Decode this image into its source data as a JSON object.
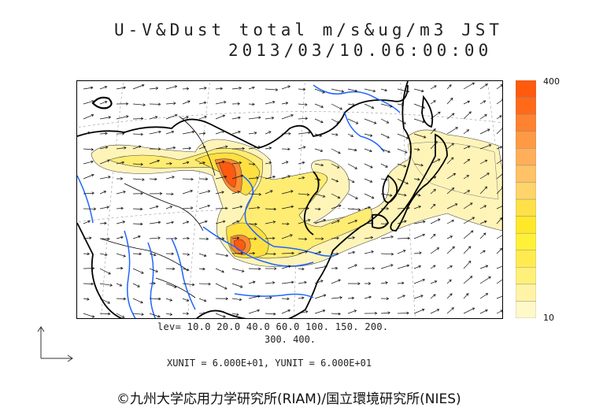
{
  "title": "U-V&Dust total m/s&ug/m3 JST",
  "datetime": "2013/03/10.06:00:00",
  "colorbar": {
    "max_label": "400",
    "min_label": "10",
    "colors": [
      "#fff8c8",
      "#fff3a6",
      "#fff07a",
      "#ffeb50",
      "#fff03a",
      "#ffe82a",
      "#ffe048",
      "#ffd46a",
      "#ffc266",
      "#ffae5a",
      "#ff9a44",
      "#ff8230",
      "#ff6a1a",
      "#ff5a0e"
    ]
  },
  "levels_line1": "lev= 10.0 20.0 40.0 60.0 100. 150. 200.",
  "levels_line2": "300. 400.",
  "units_line": "XUNIT = 6.000E+01, YUNIT = 6.000E+01",
  "copyright": "©九州大学応用力学研究所(RIAM)/国立環境研究所(NIES)",
  "colors": {
    "coast": "#000000",
    "river": "#1e64ff",
    "low_dust": "#fff4b8",
    "high_dust": "#ff5a10"
  }
}
